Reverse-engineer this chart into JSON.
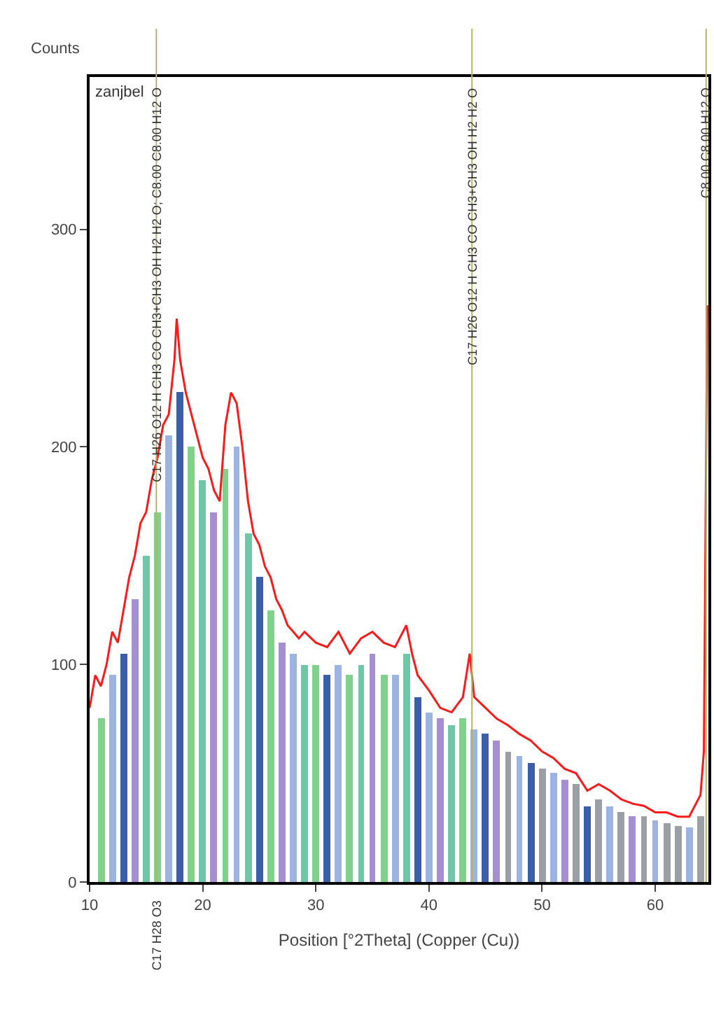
{
  "chart_data": {
    "type": "bar",
    "ylabel": "Counts",
    "xlabel": "Position [°2Theta] (Copper (Cu))",
    "xlim": [
      10,
      64.7
    ],
    "xticks": [
      10,
      20,
      30,
      40,
      50,
      60
    ],
    "ylim": [
      0,
      370
    ],
    "yticks": [
      0,
      100,
      200,
      300
    ],
    "x": [
      11,
      12,
      13,
      14,
      15,
      16,
      17,
      18,
      19,
      20,
      21,
      22,
      23,
      24,
      25,
      26,
      27,
      28,
      29,
      30,
      31,
      32,
      33,
      34,
      35,
      36,
      37,
      38,
      39,
      40,
      41,
      42,
      43,
      44,
      45,
      46,
      47,
      48,
      49,
      50,
      51,
      52,
      53,
      54,
      55,
      56,
      57,
      58,
      59,
      60,
      61,
      62,
      63,
      64
    ],
    "values": [
      75,
      95,
      105,
      130,
      150,
      170,
      205,
      225,
      200,
      185,
      170,
      190,
      200,
      160,
      140,
      125,
      110,
      105,
      100,
      100,
      95,
      100,
      95,
      100,
      105,
      95,
      95,
      105,
      85,
      78,
      75,
      72,
      75,
      70,
      68,
      65,
      60,
      58,
      55,
      52,
      50,
      47,
      45,
      35,
      38,
      35,
      32,
      30,
      30,
      28,
      27,
      26,
      25,
      30
    ],
    "colors": [
      "#7fd18b",
      "#9db4e0",
      "#3a5fa8",
      "#a58fd0",
      "#6fc6a8",
      "#7fd18b",
      "#9db4e0",
      "#3a5fa8",
      "#7fd18b",
      "#6fc6a8",
      "#a58fd0",
      "#7fd18b",
      "#9db4e0",
      "#6fc6a8",
      "#3a5fa8",
      "#7fd18b",
      "#a58fd0",
      "#9db4e0",
      "#6fc6a8",
      "#7fd18b",
      "#3a5fa8",
      "#9db4e0",
      "#7fd18b",
      "#6fc6a8",
      "#a58fd0",
      "#7fd18b",
      "#9db4e0",
      "#6fc6a8",
      "#3a5fa8",
      "#9db4e0",
      "#a58fd0",
      "#6fc6a8",
      "#7fd18b",
      "#9db4e0",
      "#3a5fa8",
      "#a58fd0",
      "#9aa0a6",
      "#9db4e0",
      "#3a5fa8",
      "#9aa0a6",
      "#9db4e0",
      "#a58fd0",
      "#9aa0a6",
      "#3a5fa8",
      "#9aa0a6",
      "#9db4e0",
      "#9aa0a6",
      "#a58fd0",
      "#9aa0a6",
      "#9db4e0",
      "#9aa0a6",
      "#9aa0a6",
      "#9db4e0",
      "#9aa0a6"
    ],
    "series": [
      {
        "type": "line",
        "color": "#ff1a1a",
        "x": [
          10,
          10.5,
          11,
          11.5,
          12,
          12.5,
          13,
          13.5,
          14,
          14.5,
          15,
          15.5,
          16,
          16.5,
          17,
          17.5,
          17.7,
          18,
          18.5,
          19,
          19.5,
          20,
          20.5,
          21,
          21.5,
          22,
          22.5,
          23,
          23.5,
          24,
          24.5,
          25,
          25.5,
          26,
          26.5,
          27,
          27.5,
          28,
          28.5,
          29,
          30,
          31,
          32,
          33,
          34,
          35,
          36,
          37,
          38,
          38.5,
          39,
          40,
          41,
          42,
          43,
          43.6,
          44,
          45,
          46,
          47,
          48,
          49,
          50,
          51,
          52,
          53,
          54,
          55,
          56,
          57,
          58,
          59,
          60,
          61,
          62,
          63,
          64,
          64.3,
          64.6
        ],
        "values": [
          80,
          95,
          90,
          100,
          115,
          110,
          125,
          140,
          150,
          165,
          170,
          185,
          195,
          210,
          215,
          240,
          259,
          240,
          225,
          215,
          205,
          195,
          190,
          180,
          175,
          210,
          225,
          220,
          200,
          175,
          160,
          155,
          145,
          140,
          130,
          125,
          118,
          115,
          112,
          115,
          110,
          108,
          115,
          105,
          112,
          115,
          110,
          108,
          118,
          105,
          95,
          88,
          80,
          78,
          85,
          105,
          85,
          80,
          75,
          72,
          68,
          65,
          60,
          57,
          52,
          50,
          42,
          45,
          42,
          38,
          36,
          35,
          32,
          32,
          30,
          30,
          40,
          60,
          265
        ]
      }
    ],
    "ref_lines": [
      {
        "axis": "x",
        "value": 15.9,
        "label": "C17 H26 O12 H CH3 CO CH3+CH3 OH H2 H2 O; C8.00 C8.00 H12 O",
        "color": "#b8b070"
      },
      {
        "axis": "x",
        "value": 43.8,
        "label": "C17 H26 O12 H CH3 CO CH3+CH3 OH H2 H2 O",
        "color": "#b8b070"
      },
      {
        "axis": "x",
        "value": 64.5,
        "label": "C8.00 C8.00 H12 O",
        "color": "#b8b070"
      }
    ],
    "annotations": [
      "zanjbel",
      "C17 H28 O3"
    ]
  }
}
